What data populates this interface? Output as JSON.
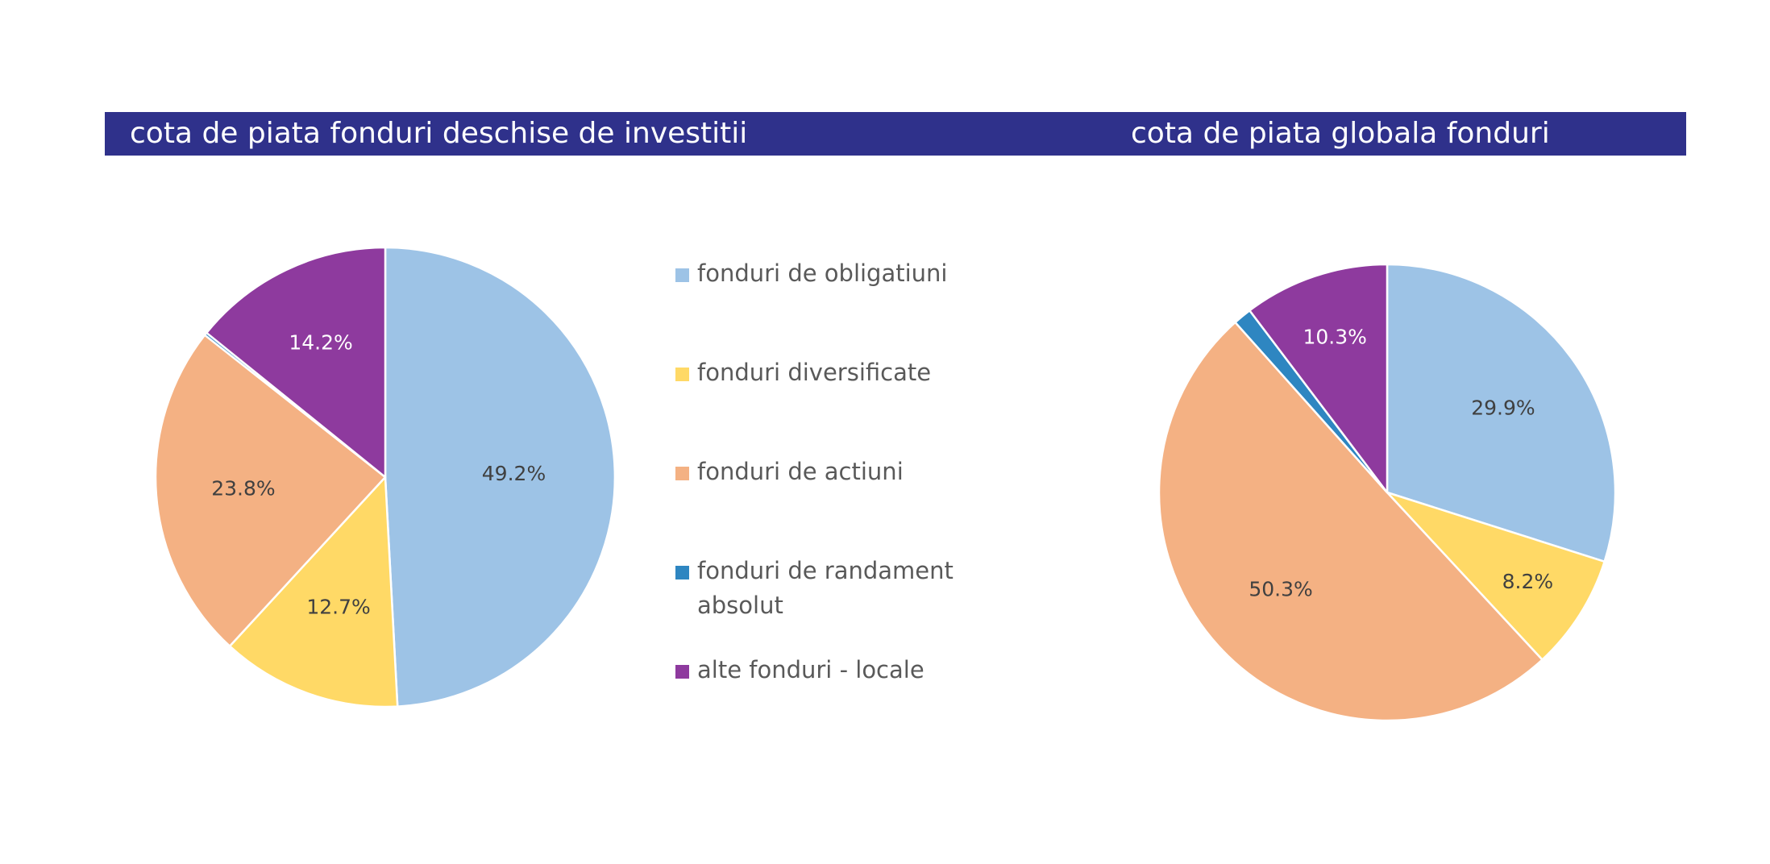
{
  "headers": {
    "left_title": "cota de piata fonduri deschise de investitii",
    "right_title": "cota de piata globala fonduri"
  },
  "legend": {
    "items": [
      {
        "label": "fonduri de obligatiuni",
        "color": "#9dc3e6"
      },
      {
        "label": "fonduri diversificate",
        "color": "#ffd966"
      },
      {
        "label": "fonduri de actiuni",
        "color": "#f4b183"
      },
      {
        "label": "fonduri de randament absolut",
        "color": "#2e86c1"
      },
      {
        "label": "alte fonduri - locale",
        "color": "#8e3a9e"
      }
    ]
  },
  "chart_data": [
    {
      "type": "pie",
      "title": "cota de piata fonduri deschise de investitii",
      "categories": [
        "fonduri de obligatiuni",
        "fonduri diversificate",
        "fonduri de actiuni",
        "fonduri de randament absolut",
        "alte fonduri - locale"
      ],
      "values": [
        49.2,
        12.7,
        23.8,
        0.2,
        14.2
      ],
      "labels": [
        "49.2%",
        "12.7%",
        "23.8%",
        "",
        "14.2%"
      ],
      "colors": [
        "#9dc3e6",
        "#ffd966",
        "#f4b183",
        "#2e86c1",
        "#8e3a9e"
      ],
      "start_angle": "12 o'clock",
      "direction": "clockwise"
    },
    {
      "type": "pie",
      "title": "cota de piata globala fonduri",
      "categories": [
        "fonduri de obligatiuni",
        "fonduri diversificate",
        "fonduri de actiuni",
        "fonduri de randament absolut",
        "alte fonduri - locale"
      ],
      "values": [
        29.9,
        8.2,
        50.3,
        1.3,
        10.3
      ],
      "labels": [
        "29.9%",
        "8.2%",
        "50.3%",
        "",
        "10.3%"
      ],
      "colors": [
        "#9dc3e6",
        "#ffd966",
        "#f4b183",
        "#2e86c1",
        "#8e3a9e"
      ],
      "start_angle": "12 o'clock",
      "direction": "clockwise"
    }
  ]
}
